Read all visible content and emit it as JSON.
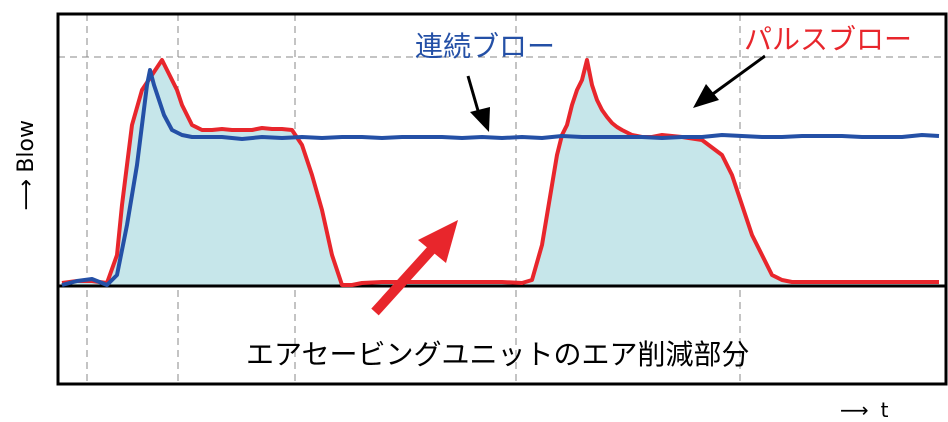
{
  "chart_data": {
    "type": "line",
    "ylabel": "Blow",
    "xlabel": "t",
    "grid": true,
    "annotations": {
      "continuous_label": "連続ブロー",
      "pulse_label": "パルスブロー",
      "savings_label": "エアセービングユニットのエア削減部分"
    },
    "colors": {
      "continuous": "#2450a6",
      "pulse": "#e8262c",
      "savings_fill": "#c6e6ea",
      "savings_arrow": "#e8262c"
    },
    "series": [
      {
        "name": "連続ブロー",
        "x": [
          0,
          15,
          30,
          45,
          55,
          65,
          75,
          80,
          85,
          88,
          92,
          97,
          102,
          110,
          120,
          130,
          140,
          160,
          180,
          200,
          220,
          240,
          260,
          280,
          300,
          320,
          340,
          360,
          380,
          400,
          420,
          440,
          460,
          480,
          500,
          520,
          540,
          560,
          580,
          600,
          620,
          640,
          660,
          680,
          700,
          720,
          740,
          760,
          780,
          800,
          820,
          840,
          860,
          877
        ],
        "y": [
          0,
          4,
          6,
          0,
          10,
          60,
          120,
          160,
          200,
          215,
          200,
          185,
          170,
          155,
          150,
          148,
          148,
          148,
          146,
          148,
          147,
          148,
          147,
          148,
          148,
          147,
          148,
          148,
          148,
          147,
          148,
          147,
          148,
          147,
          149,
          148,
          148,
          148,
          148,
          147,
          148,
          148,
          150,
          149,
          148,
          148,
          149,
          149,
          149,
          148,
          148,
          148,
          150,
          149
        ]
      },
      {
        "name": "パルスブロー",
        "x": [
          0,
          15,
          30,
          45,
          55,
          60,
          65,
          70,
          80,
          90,
          100,
          110,
          115,
          120,
          125,
          130,
          140,
          150,
          160,
          170,
          180,
          190,
          200,
          210,
          220,
          230,
          240,
          250,
          260,
          270,
          280,
          290,
          300,
          320,
          340,
          360,
          380,
          400,
          420,
          440,
          460,
          470,
          480,
          490,
          495,
          500,
          505,
          510,
          515,
          520,
          525,
          530,
          535,
          540,
          545,
          550,
          555,
          560,
          570,
          580,
          590,
          600,
          620,
          640,
          660,
          670,
          680,
          690,
          700,
          710,
          720,
          730,
          740,
          750,
          760,
          770,
          780,
          800,
          820,
          840,
          860,
          877
        ],
        "y": [
          2,
          4,
          4,
          2,
          30,
          80,
          120,
          160,
          195,
          210,
          225,
          205,
          195,
          180,
          170,
          160,
          155,
          155,
          156,
          155,
          155,
          155,
          157,
          156,
          156,
          155,
          140,
          110,
          75,
          30,
          0,
          0,
          2,
          3,
          3,
          3,
          3,
          3,
          3,
          3,
          2,
          5,
          40,
          100,
          130,
          150,
          160,
          180,
          195,
          205,
          225,
          200,
          185,
          175,
          168,
          162,
          158,
          155,
          150,
          148,
          148,
          150,
          148,
          145,
          130,
          110,
          80,
          50,
          30,
          10,
          5,
          3,
          3,
          3,
          3,
          3,
          3,
          3,
          3,
          3,
          3,
          3
        ],
        "fill_under": true
      }
    ]
  }
}
